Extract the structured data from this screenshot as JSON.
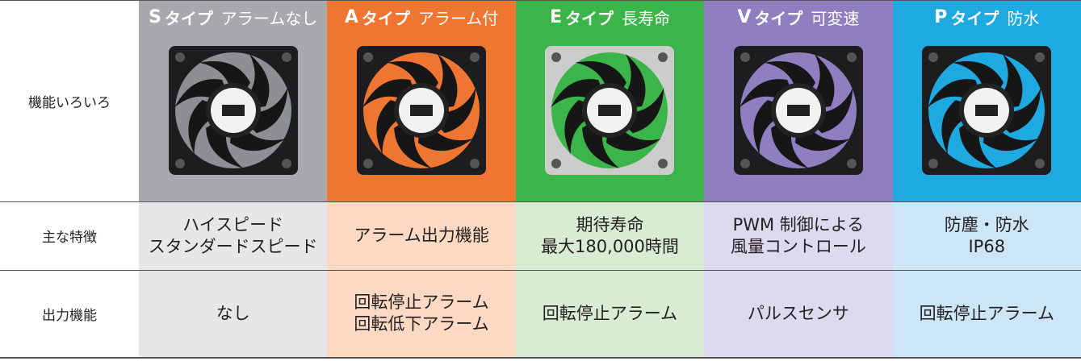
{
  "row_labels": [
    "機能いろいろ",
    "主な特徴",
    "出力機能"
  ],
  "columns": [
    {
      "letter": "S",
      "type": "タイプ",
      "name": "アラームなし",
      "color": "#a7a9ac",
      "light": "#e6e7e8",
      "features": [
        "ハイスピード",
        "スタンダードスピード"
      ],
      "output": [
        "なし"
      ]
    },
    {
      "letter": "A",
      "type": "タイプ",
      "name": "アラーム付",
      "color": "#ef7532",
      "light": "#fbd9c2",
      "features": [
        "アラーム出力機能"
      ],
      "output": [
        "回転停止アラーム",
        "回転低下アラーム"
      ]
    },
    {
      "letter": "E",
      "type": "タイプ",
      "name": "長寿命",
      "color": "#3bb54a",
      "light": "#d7ecd2",
      "features": [
        "期待寿命",
        "最大180,000時間"
      ],
      "output": [
        "回転停止アラーム"
      ]
    },
    {
      "letter": "V",
      "type": "タイプ",
      "name": "可変速",
      "color": "#8e80c0",
      "light": "#ddd9ee",
      "features": [
        "PWM 制御による",
        "風量コントロール"
      ],
      "output": [
        "パルスセンサ"
      ]
    },
    {
      "letter": "P",
      "type": "タイプ",
      "name": "防水",
      "color": "#1fa9e1",
      "light": "#cde6f6",
      "features": [
        "防塵・防水",
        "IP68"
      ],
      "output": [
        "回転停止アラーム"
      ]
    }
  ]
}
